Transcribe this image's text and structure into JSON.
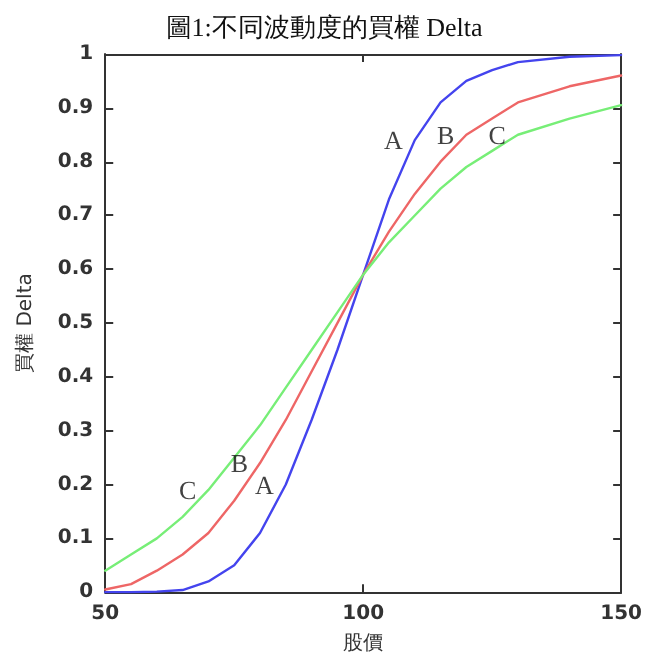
{
  "chart_data": {
    "type": "line",
    "title": "圖1:不同波動度的買權 Delta",
    "xlabel": "股價",
    "ylabel": "買權 Delta",
    "x": [
      50,
      55,
      60,
      65,
      70,
      75,
      80,
      85,
      90,
      95,
      100,
      105,
      110,
      115,
      120,
      125,
      130,
      140,
      150
    ],
    "series": [
      {
        "color": "#4444ee",
        "values": [
          0,
          0,
          0.001,
          0.004,
          0.02,
          0.05,
          0.11,
          0.2,
          0.32,
          0.45,
          0.59,
          0.73,
          0.84,
          0.91,
          0.95,
          0.97,
          0.985,
          0.995,
          0.998
        ]
      },
      {
        "color": "#ee6666",
        "values": [
          0.005,
          0.015,
          0.04,
          0.07,
          0.11,
          0.17,
          0.24,
          0.32,
          0.41,
          0.5,
          0.59,
          0.67,
          0.74,
          0.8,
          0.85,
          0.88,
          0.91,
          0.94,
          0.96
        ]
      },
      {
        "color": "#77ee77",
        "values": [
          0.04,
          0.07,
          0.1,
          0.14,
          0.19,
          0.25,
          0.31,
          0.38,
          0.45,
          0.52,
          0.59,
          0.65,
          0.7,
          0.75,
          0.79,
          0.82,
          0.85,
          0.88,
          0.905
        ]
      }
    ],
    "annotations": [
      {
        "text": "A",
        "x": 110,
        "y": 0.84
      },
      {
        "text": "B",
        "x": 120,
        "y": 0.85
      },
      {
        "text": "C",
        "x": 130,
        "y": 0.85
      },
      {
        "text": "C",
        "x": 70,
        "y": 0.19
      },
      {
        "text": "B",
        "x": 80,
        "y": 0.24
      },
      {
        "text": "A",
        "x": 85,
        "y": 0.2
      }
    ],
    "xlim": [
      50,
      150
    ],
    "xticks": [
      50,
      100,
      150
    ],
    "ylim": [
      0,
      1
    ],
    "yticks": [
      0,
      0.1,
      0.2,
      0.3,
      0.4,
      0.5,
      0.6,
      0.7,
      0.8,
      0.9,
      1
    ],
    "grid": false,
    "marker": "none",
    "line_style": "solid"
  }
}
